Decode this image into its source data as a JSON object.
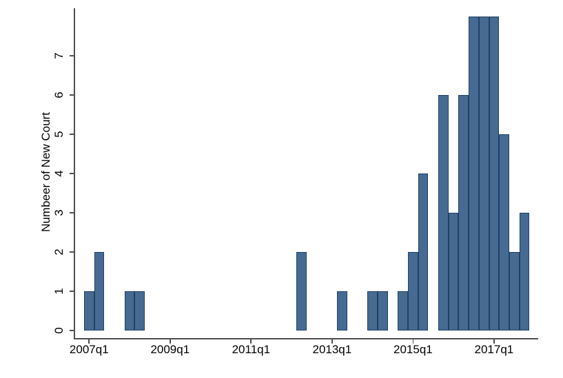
{
  "chart_data": {
    "type": "bar",
    "title": "",
    "xlabel": "",
    "ylabel": "Numbeer of New Court",
    "x_unit": "quarter",
    "ylim": [
      0,
      8.3
    ],
    "grid": "off",
    "legend": "none",
    "y_ticks": [
      0,
      1,
      2,
      3,
      4,
      5,
      6,
      7
    ],
    "x_tick_labels": [
      "2007q1",
      "2009q1",
      "2011q1",
      "2013q1",
      "2015q1",
      "2017q1"
    ],
    "bars": [
      {
        "quarter": "2007q1",
        "count": 1
      },
      {
        "quarter": "2007q2",
        "count": 2
      },
      {
        "quarter": "2008q1",
        "count": 1
      },
      {
        "quarter": "2008q2",
        "count": 1
      },
      {
        "quarter": "2012q2",
        "count": 2
      },
      {
        "quarter": "2013q2",
        "count": 1
      },
      {
        "quarter": "2014q1",
        "count": 1
      },
      {
        "quarter": "2014q2",
        "count": 1
      },
      {
        "quarter": "2014q4",
        "count": 1
      },
      {
        "quarter": "2015q1",
        "count": 2
      },
      {
        "quarter": "2015q2",
        "count": 4
      },
      {
        "quarter": "2015q4",
        "count": 6
      },
      {
        "quarter": "2016q1",
        "count": 3
      },
      {
        "quarter": "2016q2",
        "count": 6
      },
      {
        "quarter": "2016q3",
        "count": 8
      },
      {
        "quarter": "2016q4",
        "count": 8
      },
      {
        "quarter": "2017q1",
        "count": 8
      },
      {
        "quarter": "2017q2",
        "count": 5
      },
      {
        "quarter": "2017q3",
        "count": 2
      },
      {
        "quarter": "2017q4",
        "count": 3
      }
    ]
  },
  "colors": {
    "background": "#ffffff",
    "bar_fill": "#476a92",
    "bar_border": "#1e4164",
    "axis": "#4d4d4d",
    "text": "#000000"
  }
}
